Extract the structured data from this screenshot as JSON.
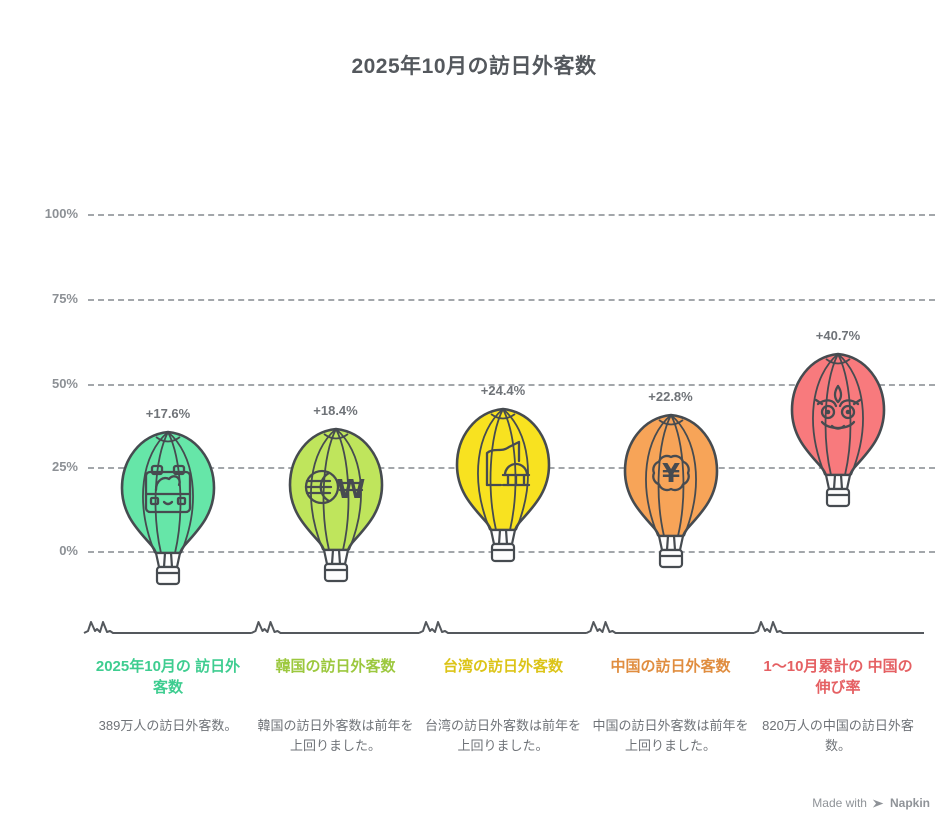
{
  "title": "2025年10月の訪日外客数",
  "axis": {
    "yticks": [
      "100%",
      "75%",
      "50%",
      "25%",
      "0%"
    ],
    "grid_color": "#94989d",
    "tick_color": "#8c9095"
  },
  "chart_data": {
    "type": "bar",
    "variant": "balloon_pictograph",
    "title": "2025年10月の訪日外客数",
    "ylim": [
      0,
      100
    ],
    "ytick_labels": [
      "0%",
      "25%",
      "50%",
      "75%",
      "100%"
    ],
    "grid": "dashed-horizontal",
    "legend": "none",
    "categories": [
      "2025年10月の訪日外客数",
      "韓国の訪日外客数",
      "台湾の訪日外客数",
      "中国の訪日外客数",
      "1〜10月累計の中国の伸び率"
    ],
    "values": [
      17.6,
      18.4,
      24.4,
      22.8,
      40.7
    ],
    "points": [
      {
        "value": 17.6,
        "value_label": "+17.6%",
        "color": "#66e6a8",
        "heading": "2025年10月の\n訪日外客数",
        "heading_color": "#3ecd90",
        "description": "389万人の訪日外客数。",
        "icon": "suitcase"
      },
      {
        "value": 18.4,
        "value_label": "+18.4%",
        "color": "#bfe55c",
        "heading": "韓国の訪日外客数",
        "heading_color": "#9cc83e",
        "description": "韓国の訪日外客数は前年を上回りました。",
        "icon": "globe-won"
      },
      {
        "value": 24.4,
        "value_label": "+24.4%",
        "color": "#f8e220",
        "heading": "台湾の訪日外客数",
        "heading_color": "#dcc417",
        "description": "台湾の訪日外客数は前年を上回りました。",
        "icon": "map-landmark"
      },
      {
        "value": 22.8,
        "value_label": "+22.8%",
        "color": "#f7a458",
        "heading": "中国の訪日外客数",
        "heading_color": "#e08d3f",
        "description": "中国の訪日外客数は前年を上回りました。",
        "icon": "flower-yen"
      },
      {
        "value": 40.7,
        "value_label": "+40.7%",
        "color": "#f87a7d",
        "heading": "1〜10月累計の\n中国の伸び率",
        "heading_color": "#e56063",
        "description": "820万人の中国の訪日外客数。",
        "icon": "lion-mask"
      }
    ]
  },
  "watermark": {
    "prefix": "Made with",
    "brand": "Napkin"
  }
}
